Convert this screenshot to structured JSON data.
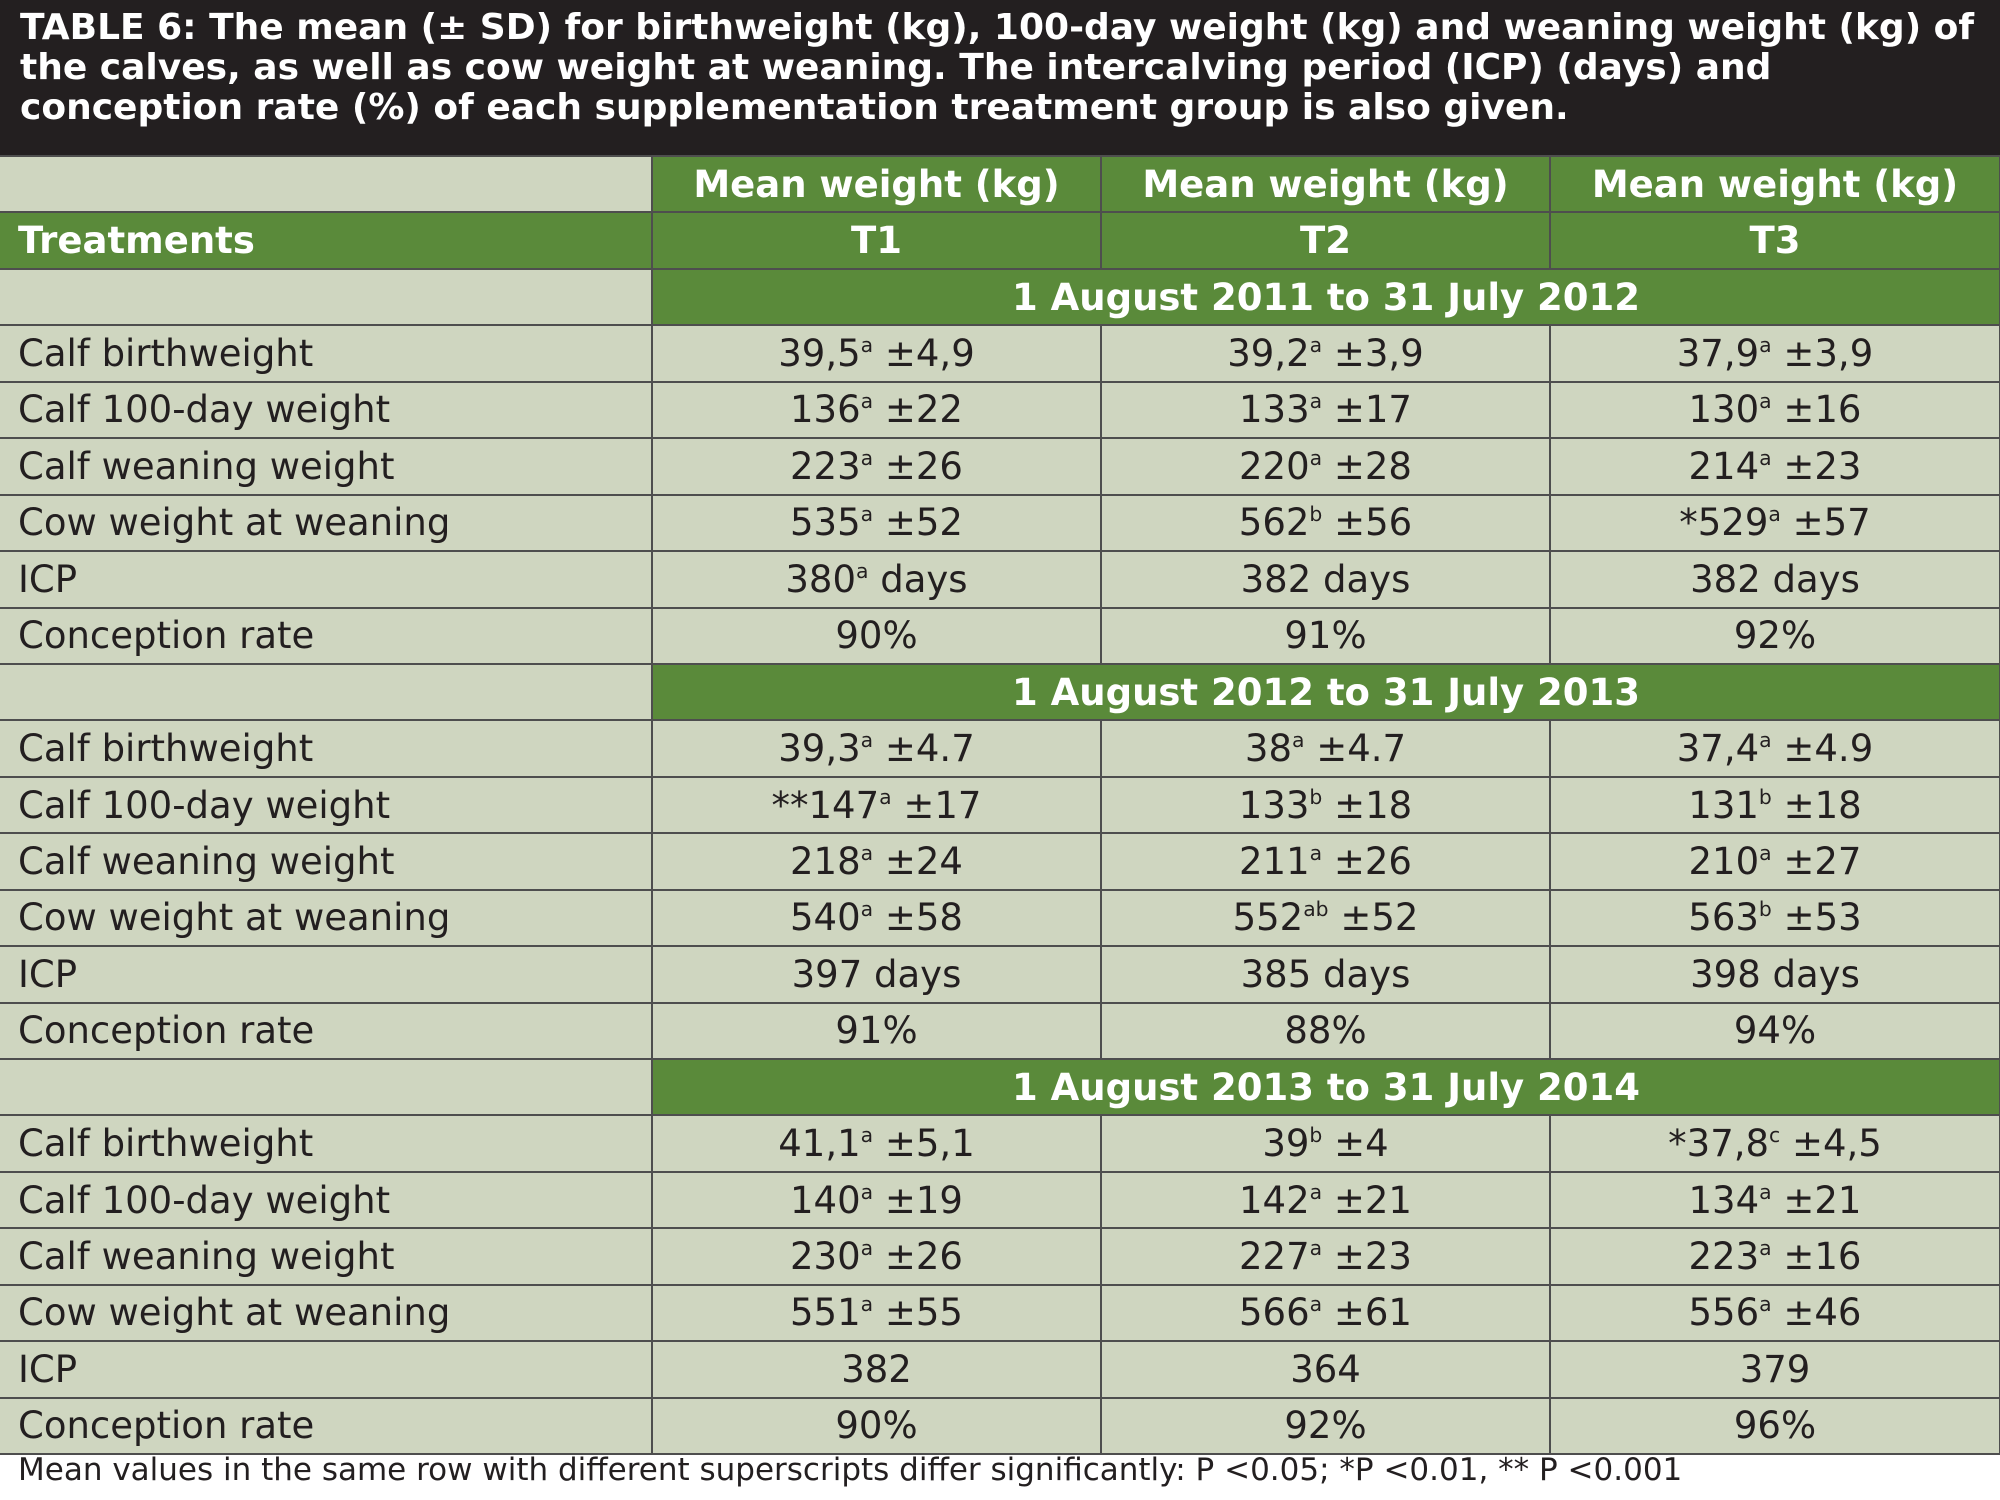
{
  "caption": "TABLE 6: The mean (± SD) for birthweight (kg), 100-day weight (kg) and weaning weight (kg) of the calves, as well as cow weight at weaning. The intercalving period (ICP) (days) and conception rate (%) of each supplementation treatment group is also given.",
  "header": {
    "mean_weight": [
      "Mean weight (kg)",
      "Mean weight (kg)",
      "Mean weight (kg)"
    ],
    "treatments_label": "Treatments",
    "treatments": [
      "T1",
      "T2",
      "T3"
    ]
  },
  "periods": [
    {
      "title": "1 August 2011 to 31 July 2012",
      "rows": [
        {
          "label": "Calf birthweight",
          "cells": [
            {
              "pre": "",
              "v": "39,5",
              "sup": "a",
              "post": " ±4,9"
            },
            {
              "pre": "",
              "v": "39,2",
              "sup": "a",
              "post": " ±3,9"
            },
            {
              "pre": "",
              "v": "37,9",
              "sup": "a",
              "post": " ±3,9"
            }
          ]
        },
        {
          "label": "Calf 100-day weight",
          "cells": [
            {
              "pre": "",
              "v": "136",
              "sup": "a",
              "post": " ±22"
            },
            {
              "pre": "",
              "v": "133",
              "sup": "a",
              "post": " ±17"
            },
            {
              "pre": "",
              "v": "130",
              "sup": "a",
              "post": " ±16"
            }
          ]
        },
        {
          "label": "Calf weaning weight",
          "cells": [
            {
              "pre": "",
              "v": "223",
              "sup": "a",
              "post": " ±26"
            },
            {
              "pre": "",
              "v": "220",
              "sup": "a",
              "post": " ±28"
            },
            {
              "pre": "",
              "v": "214",
              "sup": "a",
              "post": " ±23"
            }
          ]
        },
        {
          "label": "Cow weight at weaning",
          "cells": [
            {
              "pre": "",
              "v": "535",
              "sup": "a",
              "post": " ±52"
            },
            {
              "pre": "",
              "v": "562",
              "sup": "b",
              "post": " ±56"
            },
            {
              "pre": "*",
              "v": "529",
              "sup": "a",
              "post": " ±57"
            }
          ]
        },
        {
          "label": "ICP",
          "cells": [
            {
              "pre": "",
              "v": "380",
              "sup": "a",
              "post": " days"
            },
            {
              "pre": "",
              "v": "382 days",
              "sup": "",
              "post": ""
            },
            {
              "pre": "",
              "v": "382 days",
              "sup": "",
              "post": ""
            }
          ]
        },
        {
          "label": "Conception rate",
          "cells": [
            {
              "pre": "",
              "v": "90%",
              "sup": "",
              "post": ""
            },
            {
              "pre": "",
              "v": "91%",
              "sup": "",
              "post": ""
            },
            {
              "pre": "",
              "v": "92%",
              "sup": "",
              "post": ""
            }
          ]
        }
      ]
    },
    {
      "title": "1 August 2012 to 31 July 2013",
      "rows": [
        {
          "label": "Calf birthweight",
          "cells": [
            {
              "pre": "",
              "v": "39,3",
              "sup": "a",
              "post": " ±4.7"
            },
            {
              "pre": "",
              "v": "38",
              "sup": "a",
              "post": " ±4.7"
            },
            {
              "pre": "",
              "v": "37,4",
              "sup": "a",
              "post": " ±4.9"
            }
          ]
        },
        {
          "label": "Calf 100-day weight",
          "cells": [
            {
              "pre": "**",
              "v": "147",
              "sup": "a",
              "post": " ±17"
            },
            {
              "pre": "",
              "v": "133",
              "sup": "b",
              "post": " ±18"
            },
            {
              "pre": "",
              "v": "131",
              "sup": "b",
              "post": " ±18"
            }
          ]
        },
        {
          "label": "Calf weaning weight",
          "cells": [
            {
              "pre": "",
              "v": "218",
              "sup": "a",
              "post": " ±24"
            },
            {
              "pre": "",
              "v": "211",
              "sup": "a",
              "post": " ±26"
            },
            {
              "pre": "",
              "v": "210",
              "sup": "a",
              "post": " ±27"
            }
          ]
        },
        {
          "label": "Cow weight at weaning",
          "cells": [
            {
              "pre": "",
              "v": "540",
              "sup": "a",
              "post": " ±58"
            },
            {
              "pre": "",
              "v": "552",
              "sup": "ab",
              "post": " ±52"
            },
            {
              "pre": "",
              "v": "563",
              "sup": "b",
              "post": " ±53"
            }
          ]
        },
        {
          "label": "ICP",
          "cells": [
            {
              "pre": "",
              "v": "397 days",
              "sup": "",
              "post": ""
            },
            {
              "pre": "",
              "v": "385 days",
              "sup": "",
              "post": ""
            },
            {
              "pre": "",
              "v": "398 days",
              "sup": "",
              "post": ""
            }
          ]
        },
        {
          "label": "Conception rate",
          "cells": [
            {
              "pre": "",
              "v": "91%",
              "sup": "",
              "post": ""
            },
            {
              "pre": "",
              "v": "88%",
              "sup": "",
              "post": ""
            },
            {
              "pre": "",
              "v": "94%",
              "sup": "",
              "post": ""
            }
          ]
        }
      ]
    },
    {
      "title": "1 August 2013 to 31 July 2014",
      "rows": [
        {
          "label": "Calf birthweight",
          "cells": [
            {
              "pre": "",
              "v": "41,1",
              "sup": "a",
              "post": " ±5,1"
            },
            {
              "pre": "",
              "v": "39",
              "sup": "b",
              "post": " ±4"
            },
            {
              "pre": "*",
              "v": "37,8",
              "sup": "c",
              "post": " ±4,5"
            }
          ]
        },
        {
          "label": "Calf 100-day weight",
          "cells": [
            {
              "pre": "",
              "v": "140",
              "sup": "a",
              "post": " ±19"
            },
            {
              "pre": "",
              "v": "142",
              "sup": "a",
              "post": " ±21"
            },
            {
              "pre": "",
              "v": "134",
              "sup": "a",
              "post": " ±21"
            }
          ]
        },
        {
          "label": "Calf weaning weight",
          "cells": [
            {
              "pre": "",
              "v": "230",
              "sup": "a",
              "post": " ±26"
            },
            {
              "pre": "",
              "v": "227",
              "sup": "a",
              "post": " ±23"
            },
            {
              "pre": "",
              "v": "223",
              "sup": "a",
              "post": " ±16"
            }
          ]
        },
        {
          "label": "Cow weight at weaning",
          "cells": [
            {
              "pre": "",
              "v": "551",
              "sup": "a",
              "post": " ±55"
            },
            {
              "pre": "",
              "v": "566",
              "sup": "a",
              "post": " ±61"
            },
            {
              "pre": "",
              "v": "556",
              "sup": "a",
              "post": " ±46"
            }
          ]
        },
        {
          "label": "ICP",
          "cells": [
            {
              "pre": "",
              "v": "382",
              "sup": "",
              "post": ""
            },
            {
              "pre": "",
              "v": "364",
              "sup": "",
              "post": ""
            },
            {
              "pre": "",
              "v": "379",
              "sup": "",
              "post": ""
            }
          ]
        },
        {
          "label": "Conception rate",
          "cells": [
            {
              "pre": "",
              "v": "90%",
              "sup": "",
              "post": ""
            },
            {
              "pre": "",
              "v": "92%",
              "sup": "",
              "post": ""
            },
            {
              "pre": "",
              "v": "96%",
              "sup": "",
              "post": ""
            }
          ]
        }
      ]
    }
  ],
  "footnote": "Mean values in the same row with different superscripts differ significantly: P <0.05; *P <0.01, ** P <0.001",
  "colors": {
    "header_green": "#5a8a3a",
    "cell_bg": "#cfd6c0",
    "caption_bg": "#231f20"
  }
}
